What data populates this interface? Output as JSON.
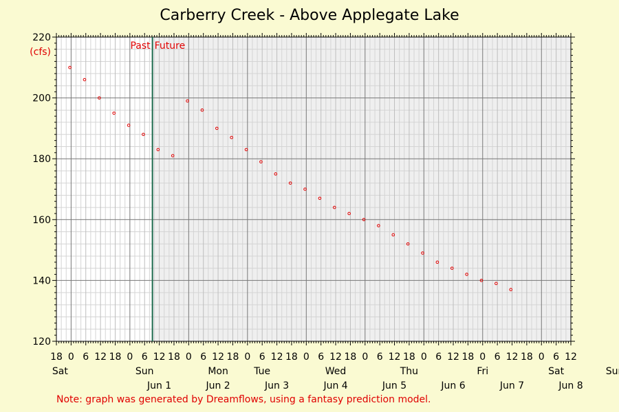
{
  "chart_data": {
    "type": "scatter",
    "title": "Carberry Creek - Above Applegate Lake",
    "ylabel": "(cfs)",
    "ylim": [
      120,
      220
    ],
    "yticks": [
      120,
      140,
      160,
      180,
      200,
      220
    ],
    "xlim_hours": [
      -6,
      204
    ],
    "x_unit": "hours from Saturday 00:00 (May 31)",
    "hour_ticks": [
      {
        "h": -6,
        "label": "18"
      },
      {
        "h": 0,
        "label": "0"
      },
      {
        "h": 6,
        "label": "6"
      },
      {
        "h": 12,
        "label": "12"
      },
      {
        "h": 18,
        "label": "18"
      },
      {
        "h": 24,
        "label": "0"
      },
      {
        "h": 30,
        "label": "6"
      },
      {
        "h": 36,
        "label": "12"
      },
      {
        "h": 42,
        "label": "18"
      },
      {
        "h": 48,
        "label": "0"
      },
      {
        "h": 54,
        "label": "6"
      },
      {
        "h": 60,
        "label": "12"
      },
      {
        "h": 66,
        "label": "18"
      },
      {
        "h": 72,
        "label": "0"
      },
      {
        "h": 78,
        "label": "6"
      },
      {
        "h": 84,
        "label": "12"
      },
      {
        "h": 90,
        "label": "18"
      },
      {
        "h": 96,
        "label": "0"
      },
      {
        "h": 102,
        "label": "6"
      },
      {
        "h": 108,
        "label": "12"
      },
      {
        "h": 114,
        "label": "18"
      },
      {
        "h": 120,
        "label": "0"
      },
      {
        "h": 126,
        "label": "6"
      },
      {
        "h": 132,
        "label": "12"
      },
      {
        "h": 138,
        "label": "18"
      },
      {
        "h": 144,
        "label": "0"
      },
      {
        "h": 150,
        "label": "6"
      },
      {
        "h": 156,
        "label": "12"
      },
      {
        "h": 162,
        "label": "18"
      },
      {
        "h": 168,
        "label": "0"
      },
      {
        "h": 174,
        "label": "6"
      },
      {
        "h": 180,
        "label": "12"
      },
      {
        "h": 186,
        "label": "18"
      },
      {
        "h": 192,
        "label": "0"
      },
      {
        "h": 198,
        "label": "6"
      },
      {
        "h": 204,
        "label": "12"
      }
    ],
    "day_labels": [
      {
        "h": 0,
        "label": "Sat"
      },
      {
        "h": 30,
        "label": "Sun"
      },
      {
        "h": 60,
        "label": "Mon"
      },
      {
        "h": 78,
        "label": "Tue"
      },
      {
        "h": 108,
        "label": "Wed"
      },
      {
        "h": 138,
        "label": "Thu"
      },
      {
        "h": 168,
        "label": "Fri"
      },
      {
        "h": 198,
        "label": "Sat"
      },
      {
        "h": 222,
        "label": "Sun"
      }
    ],
    "date_labels": [
      {
        "h": 36,
        "label": "Jun 1"
      },
      {
        "h": 60,
        "label": "Jun 2"
      },
      {
        "h": 84,
        "label": "Jun 3"
      },
      {
        "h": 108,
        "label": "Jun 4"
      },
      {
        "h": 132,
        "label": "Jun 5"
      },
      {
        "h": 156,
        "label": "Jun 6"
      },
      {
        "h": 180,
        "label": "Jun 7"
      },
      {
        "h": 204,
        "label": "Jun 8"
      }
    ],
    "now_hour": 33.2,
    "past_label": "Past",
    "future_label": "Future",
    "series": [
      {
        "points": [
          {
            "h": -0.5,
            "cfs": 210
          },
          {
            "h": 5.5,
            "cfs": 206
          },
          {
            "h": 11.5,
            "cfs": 200
          },
          {
            "h": 17.5,
            "cfs": 195
          },
          {
            "h": 23.5,
            "cfs": 191
          },
          {
            "h": 29.5,
            "cfs": 188
          },
          {
            "h": 35.5,
            "cfs": 183
          },
          {
            "h": 41.5,
            "cfs": 181
          },
          {
            "h": 47.5,
            "cfs": 199
          },
          {
            "h": 53.5,
            "cfs": 196
          },
          {
            "h": 59.5,
            "cfs": 190
          },
          {
            "h": 65.5,
            "cfs": 187
          },
          {
            "h": 71.5,
            "cfs": 183
          },
          {
            "h": 77.5,
            "cfs": 179
          },
          {
            "h": 83.5,
            "cfs": 175
          },
          {
            "h": 89.5,
            "cfs": 172
          },
          {
            "h": 95.5,
            "cfs": 170
          },
          {
            "h": 101.5,
            "cfs": 167
          },
          {
            "h": 107.5,
            "cfs": 164
          },
          {
            "h": 113.5,
            "cfs": 162
          },
          {
            "h": 119.5,
            "cfs": 160
          },
          {
            "h": 125.5,
            "cfs": 158
          },
          {
            "h": 131.5,
            "cfs": 155
          },
          {
            "h": 137.5,
            "cfs": 152
          },
          {
            "h": 143.5,
            "cfs": 149
          },
          {
            "h": 149.5,
            "cfs": 146
          },
          {
            "h": 155.5,
            "cfs": 144
          },
          {
            "h": 161.5,
            "cfs": 142
          },
          {
            "h": 167.5,
            "cfs": 140
          },
          {
            "h": 173.5,
            "cfs": 139
          },
          {
            "h": 179.5,
            "cfs": 137
          }
        ]
      }
    ],
    "grid": true,
    "note": "Note: graph was generated by Dreamflows, using a fantasy prediction model.",
    "colors": {
      "background": "#fafad2",
      "future_area": "#efefef",
      "points": "#e00000",
      "now_line": "#1e6b4e",
      "major_grid": "#777777",
      "minor_grid": "#d4d4d4",
      "text_red": "#e00000"
    }
  }
}
